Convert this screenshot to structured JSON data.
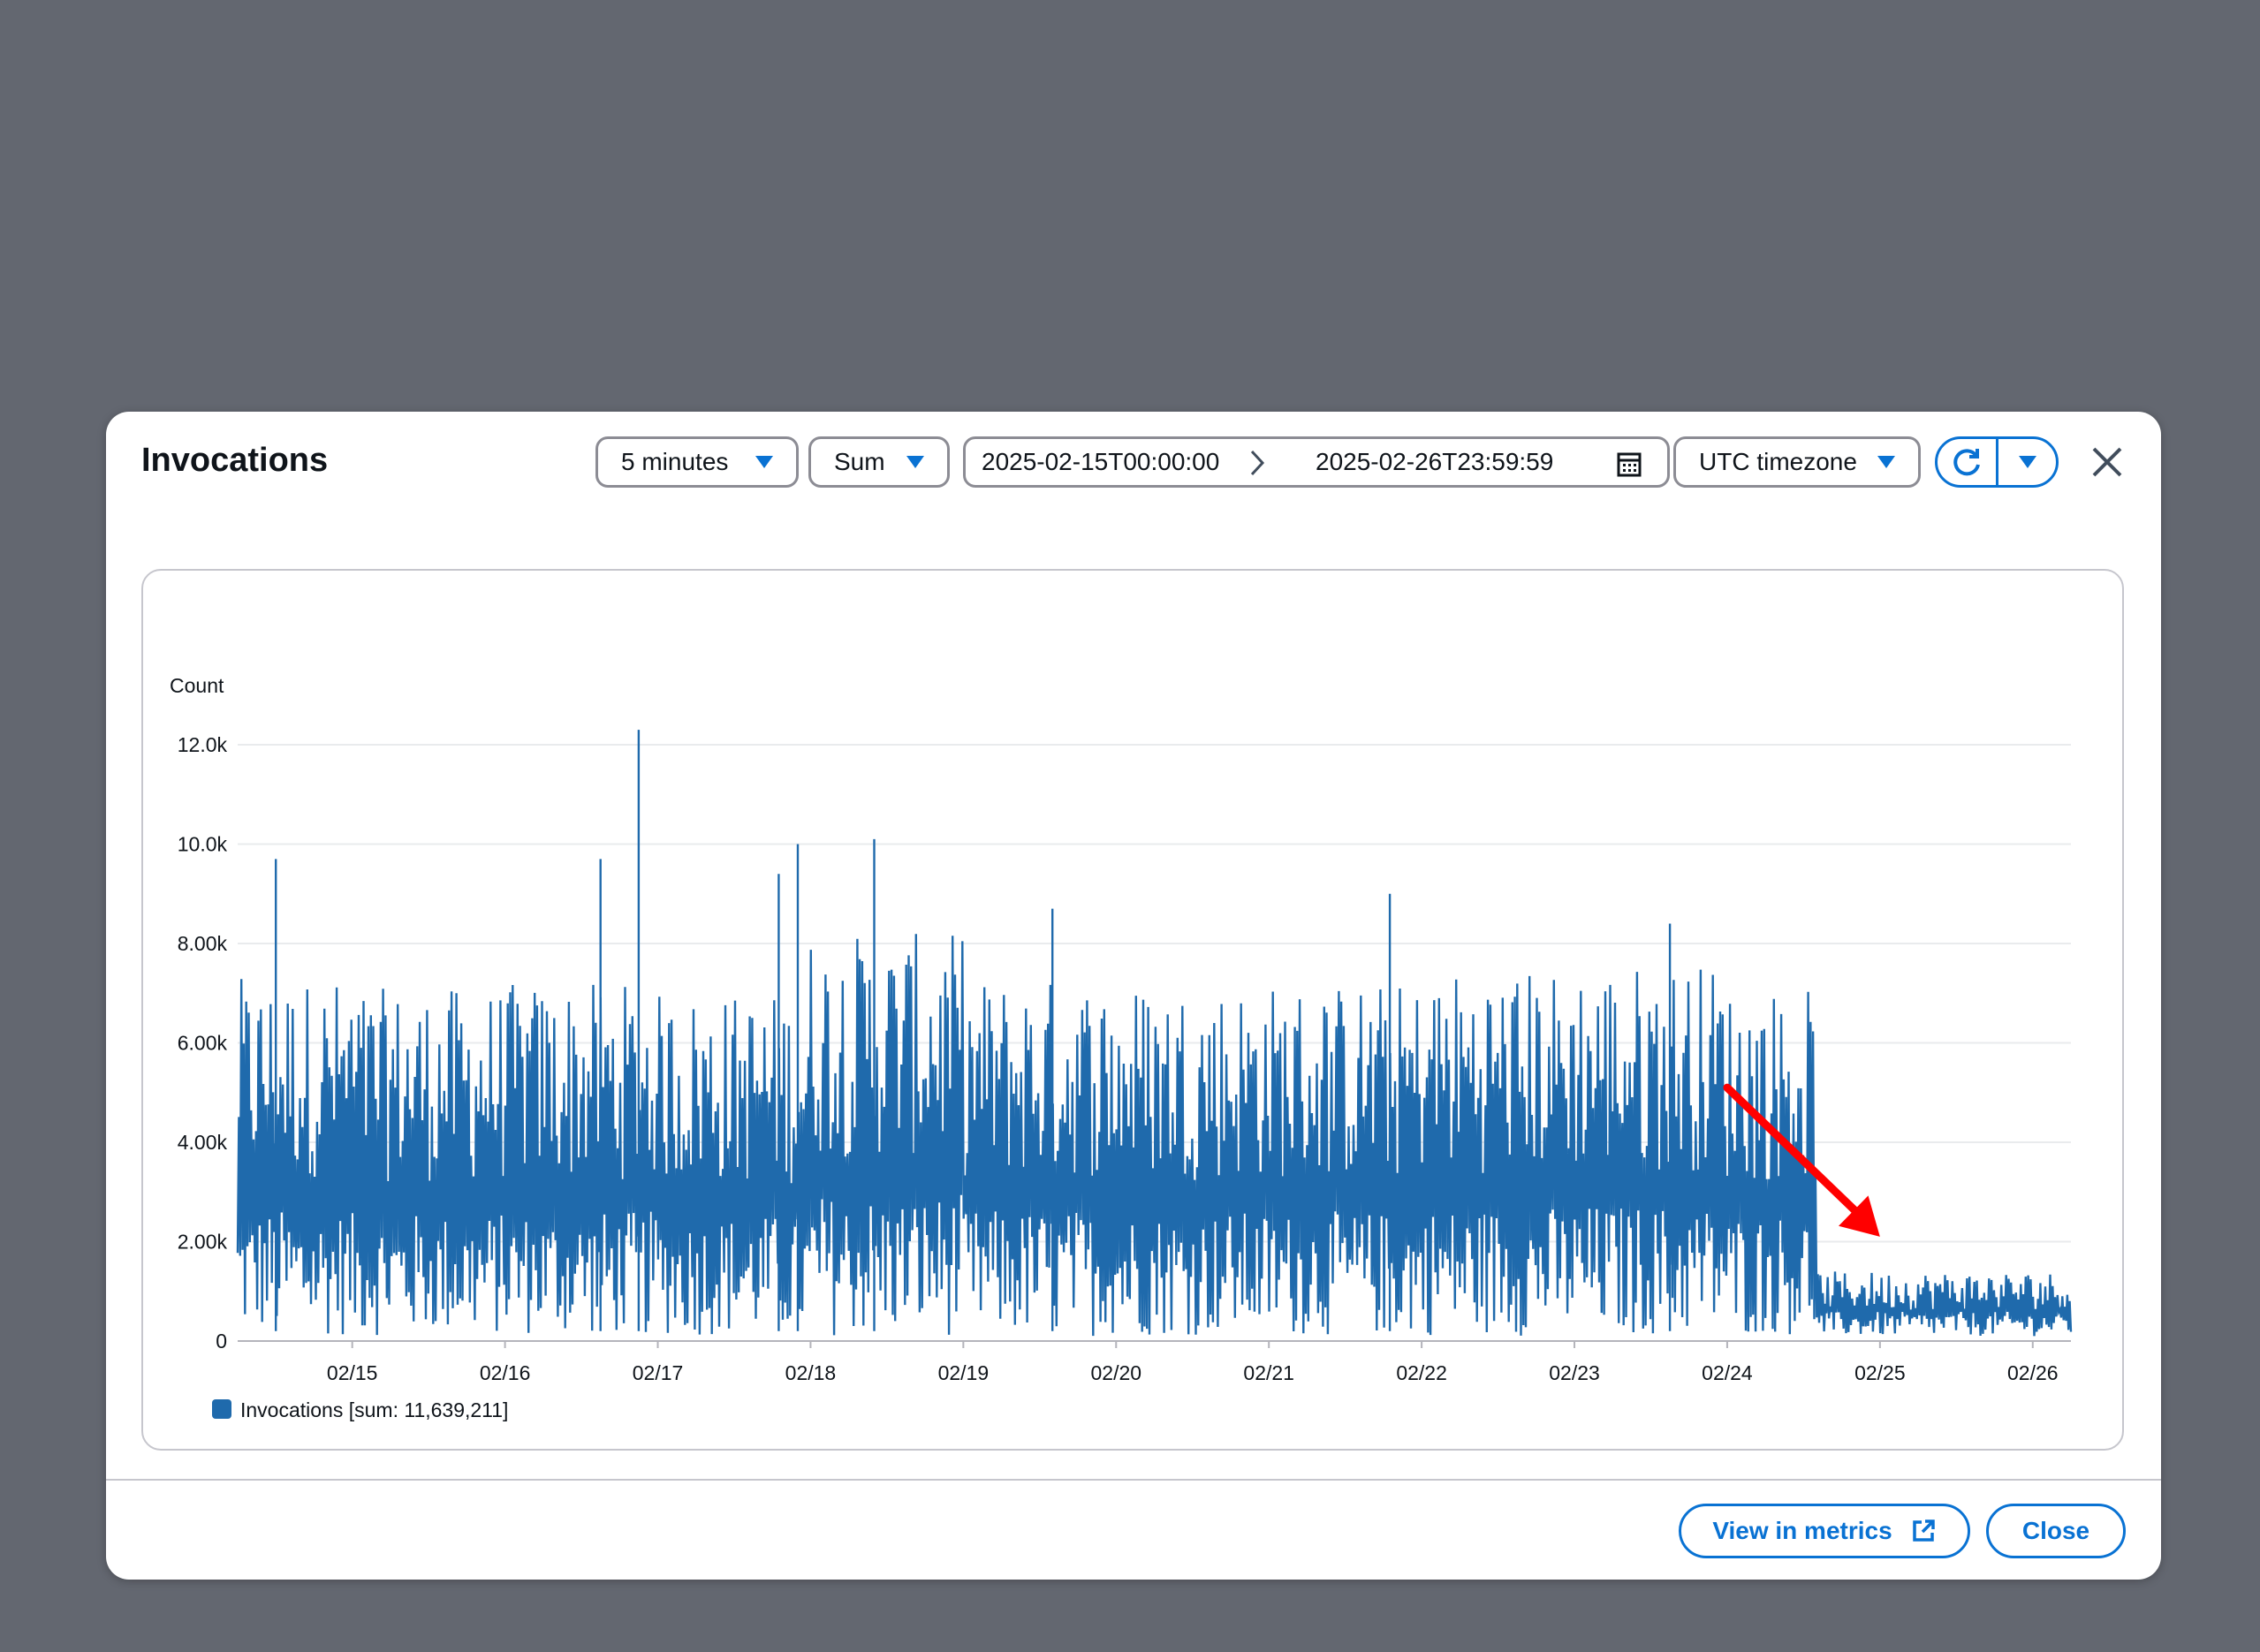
{
  "modal": {
    "title": "Invocations",
    "period": "5 minutes",
    "statistic": "Sum",
    "date_start": "2025-02-15T00:00:00",
    "date_end": "2025-02-26T23:59:59",
    "timezone": "UTC timezone",
    "icons": {
      "refresh": "refresh-icon",
      "calendar": "calendar-icon",
      "close": "close-icon",
      "external": "external-link-icon"
    },
    "footer": {
      "view_in_metrics": "View in metrics",
      "close": "Close"
    }
  },
  "chart_data": {
    "type": "line",
    "title": "",
    "ylabel": "Count",
    "ylim": [
      0,
      12000
    ],
    "yticks": [
      "0",
      "2.00k",
      "4.00k",
      "6.00k",
      "8.00k",
      "10.0k",
      "12.0k"
    ],
    "ytick_values": [
      0,
      2000,
      4000,
      6000,
      8000,
      10000,
      12000
    ],
    "xticks": [
      "02/15",
      "02/16",
      "02/17",
      "02/18",
      "02/19",
      "02/20",
      "02/21",
      "02/22",
      "02/23",
      "02/24",
      "02/25",
      "02/26"
    ],
    "xlim_days": [
      "02/14 06:00",
      "02/26 06:00"
    ],
    "grid": true,
    "legend_position": "bottom-left",
    "series": [
      {
        "name": "Invocations [sum: 11,639,211]",
        "color": "#1f6aac",
        "envelope_by_date": {
          "02/14": {
            "low": 100,
            "high": 7300
          },
          "02/15": {
            "low": 100,
            "high": 7100
          },
          "02/16": {
            "low": 100,
            "high": 7200
          },
          "02/17": {
            "low": 100,
            "high": 7000
          },
          "02/18": {
            "low": 100,
            "high": 8200
          },
          "02/19": {
            "low": 100,
            "high": 7300
          },
          "02/20": {
            "low": 100,
            "high": 7200
          },
          "02/21": {
            "low": 100,
            "high": 7200
          },
          "02/22": {
            "low": 100,
            "high": 7500
          },
          "02/23": {
            "low": 100,
            "high": 7600
          },
          "02/24": {
            "low": 100,
            "high": 7100
          },
          "02/25": {
            "low": 100,
            "high": 1400
          },
          "02/26": {
            "low": 100,
            "high": 1500
          }
        },
        "drop_time": "02/24 14:00",
        "spikes": [
          {
            "date": "02/14 12:00",
            "value": 9700
          },
          {
            "date": "02/16 15:00",
            "value": 9700
          },
          {
            "date": "02/16 21:00",
            "value": 12300
          },
          {
            "date": "02/17 19:00",
            "value": 9400
          },
          {
            "date": "02/17 22:00",
            "value": 10000
          },
          {
            "date": "02/18 10:00",
            "value": 10100
          },
          {
            "date": "02/19 14:00",
            "value": 8700
          },
          {
            "date": "02/21 19:00",
            "value": 9000
          },
          {
            "date": "02/23 15:00",
            "value": 8400
          }
        ]
      }
    ],
    "annotations": [
      {
        "type": "arrow",
        "color": "#ff0000",
        "from": {
          "x": "02/24 00:00",
          "y": 5100
        },
        "to": {
          "x": "02/25 00:00",
          "y": 2100
        }
      }
    ]
  }
}
